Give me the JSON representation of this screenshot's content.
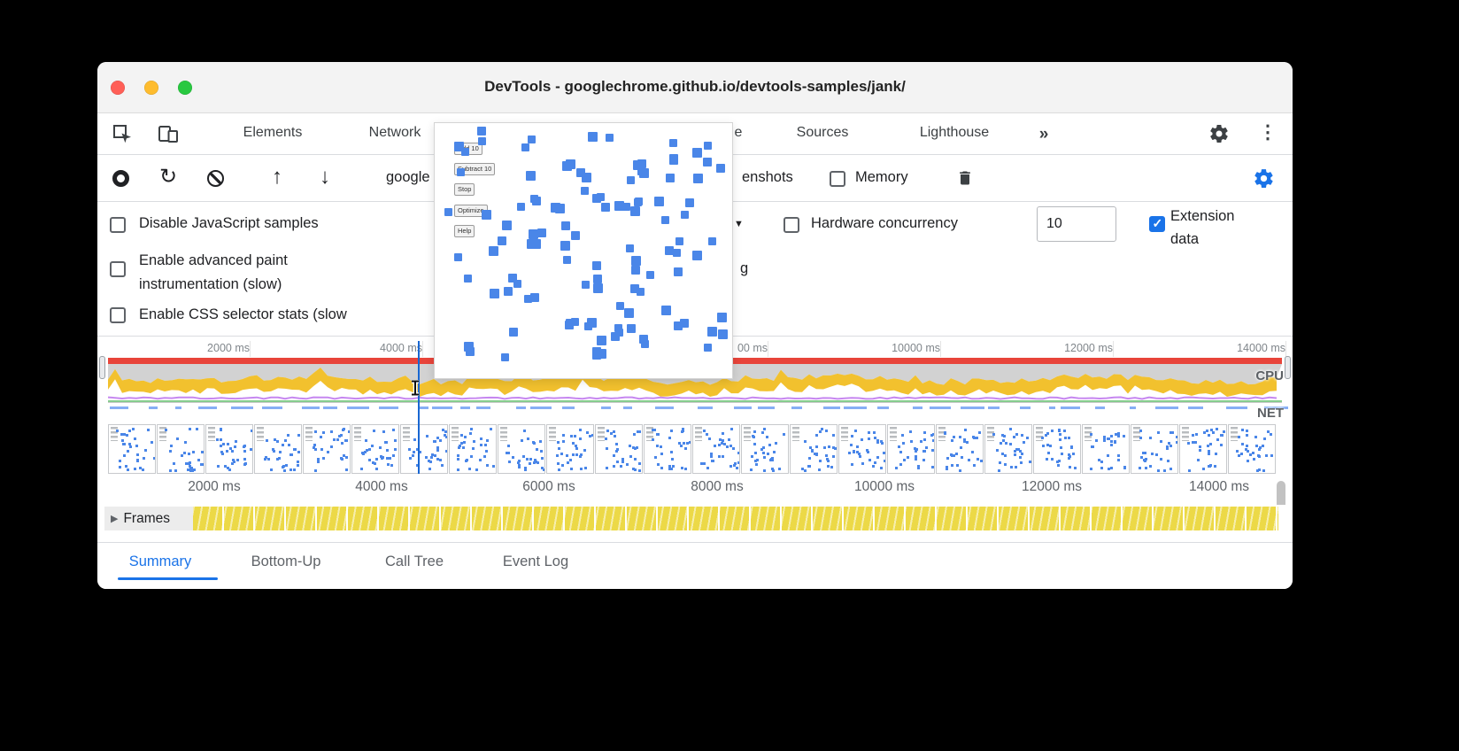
{
  "window": {
    "title": "DevTools - googlechrome.github.io/devtools-samples/jank/"
  },
  "tabbar": {
    "elements": "Elements",
    "network": "Network",
    "performance_fragment": "e",
    "sources": "Sources",
    "lighthouse": "Lighthouse",
    "more_tabs": "»"
  },
  "toolbar": {
    "url_fragment": "google",
    "screenshots_fragment": "enshots",
    "memory": "Memory"
  },
  "settings": {
    "disable_js_samples": "Disable JavaScript samples",
    "advanced_paint_line1": "Enable advanced paint",
    "advanced_paint_line2": "instrumentation (slow)",
    "css_selector_stats": "Enable CSS selector stats (slow",
    "dropdown_caret": "▼",
    "throttling_fragment": "g",
    "hardware_concurrency_label": "Hardware concurrency",
    "hardware_concurrency_value": "10",
    "extension_data_line1": "Extension",
    "extension_data_line2": "data"
  },
  "preview": {
    "buttons": [
      "Add 10",
      "Subtract 10",
      "Stop",
      "Optimize",
      "Help"
    ],
    "square_color": "#4a86e8",
    "square_count": 112
  },
  "overview": {
    "ruler_labels": [
      "2000 ms",
      "4000 ms",
      "00 ms",
      "10000 ms",
      "12000 ms",
      "14000 ms"
    ],
    "cpu_label": "CPU",
    "net_label": "NET",
    "filmstrip_count": 24,
    "colors": {
      "long_task_red": "#e8443a",
      "cpu_gray": "#d2d2d2",
      "scripting_yellow": "#f2c12e",
      "rendering_purple": "#c687f0",
      "painting_green": "#3fae4a",
      "playhead_blue": "#1967d2"
    }
  },
  "ruler2": {
    "labels": [
      "2000 ms",
      "4000 ms",
      "6000 ms",
      "8000 ms",
      "10000 ms",
      "12000 ms",
      "14000 ms"
    ]
  },
  "frames": {
    "disclosure": "▶",
    "label": "Frames"
  },
  "bottom_tabs": {
    "summary": "Summary",
    "bottom_up": "Bottom-Up",
    "call_tree": "Call Tree",
    "event_log": "Event Log"
  }
}
